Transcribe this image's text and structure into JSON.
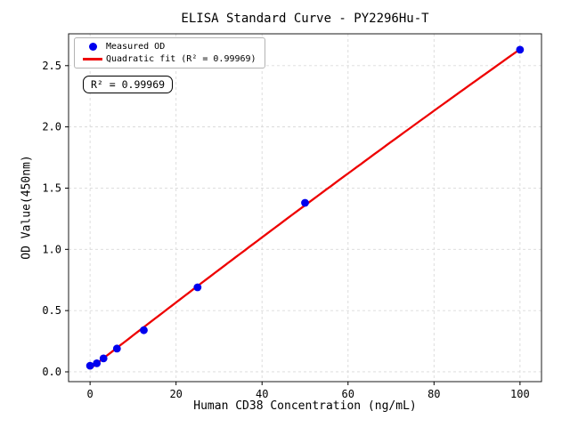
{
  "chart_data": {
    "type": "scatter",
    "title": "ELISA Standard Curve - PY2296Hu-T",
    "xlabel": "Human CD38 Concentration (ng/mL)",
    "ylabel": "OD Value(450nm)",
    "legend": [
      "Measured OD",
      "Quadratic fit (R² = 0.99969)"
    ],
    "legend_position": "upper left",
    "grid": true,
    "grid_style": "dashed",
    "xlim": [
      -5,
      105
    ],
    "ylim": [
      -0.08,
      2.76
    ],
    "xticks": [
      0,
      20,
      40,
      60,
      80,
      100
    ],
    "yticks": [
      0.0,
      0.5,
      1.0,
      1.5,
      2.0,
      2.5
    ],
    "series": [
      {
        "name": "Measured OD",
        "type": "scatter",
        "color": "#0000ee",
        "x": [
          0,
          1.5625,
          3.125,
          6.25,
          12.5,
          25,
          50,
          100
        ],
        "y": [
          0.05,
          0.07,
          0.11,
          0.19,
          0.34,
          0.69,
          1.38,
          2.63
        ]
      },
      {
        "name": "Quadratic fit",
        "type": "line",
        "fit": "quadratic",
        "color": "#ee0000",
        "x_range": [
          0,
          100
        ]
      }
    ]
  },
  "annotations": {
    "r_squared": "R² = 0.99969"
  },
  "colors": {
    "marker": "#0000ee",
    "fit_line": "#ee0000",
    "grid": "#d9d9d9",
    "spine": "#1a1a1a",
    "legend_border": "#b3b3b3"
  }
}
